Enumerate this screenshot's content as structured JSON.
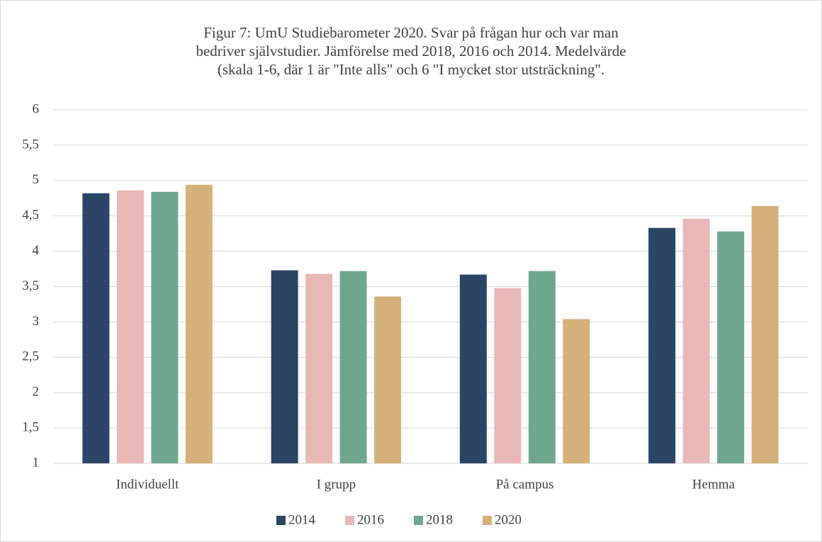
{
  "chart_data": {
    "type": "bar",
    "title": [
      "Figur 7: UmU Studiebarometer 2020. Svar på frågan hur och var man",
      "bedriver självstudier. Jämförelse med 2018, 2016 och 2014. Medelvärde",
      "(skala 1-6, där 1 är \"Inte alls\" och 6 \"I mycket stor utsträckning\"."
    ],
    "categories": [
      "Individuellt",
      "I grupp",
      "På campus",
      "Hemma"
    ],
    "series": [
      {
        "name": "2014",
        "color": "#2b4566",
        "values": [
          4.82,
          3.73,
          3.67,
          4.33
        ]
      },
      {
        "name": "2016",
        "color": "#e8b8b6",
        "values": [
          4.86,
          3.68,
          3.48,
          4.46
        ]
      },
      {
        "name": "2018",
        "color": "#6fa78d",
        "values": [
          4.84,
          3.72,
          3.72,
          4.28
        ]
      },
      {
        "name": "2020",
        "color": "#d4b07a",
        "values": [
          4.94,
          3.36,
          3.04,
          4.64
        ]
      }
    ],
    "ylim": [
      1,
      6
    ],
    "yticks": [
      1,
      {
        "value": 1.5,
        "label": "1,5"
      },
      2,
      {
        "value": 2.5,
        "label": "2,5"
      },
      3,
      {
        "value": 3.5,
        "label": "3,5"
      },
      4,
      {
        "value": 4.5,
        "label": "4,5"
      },
      5,
      {
        "value": 5.5,
        "label": "5,5"
      },
      6
    ],
    "grid": true,
    "legend": "bottom"
  }
}
